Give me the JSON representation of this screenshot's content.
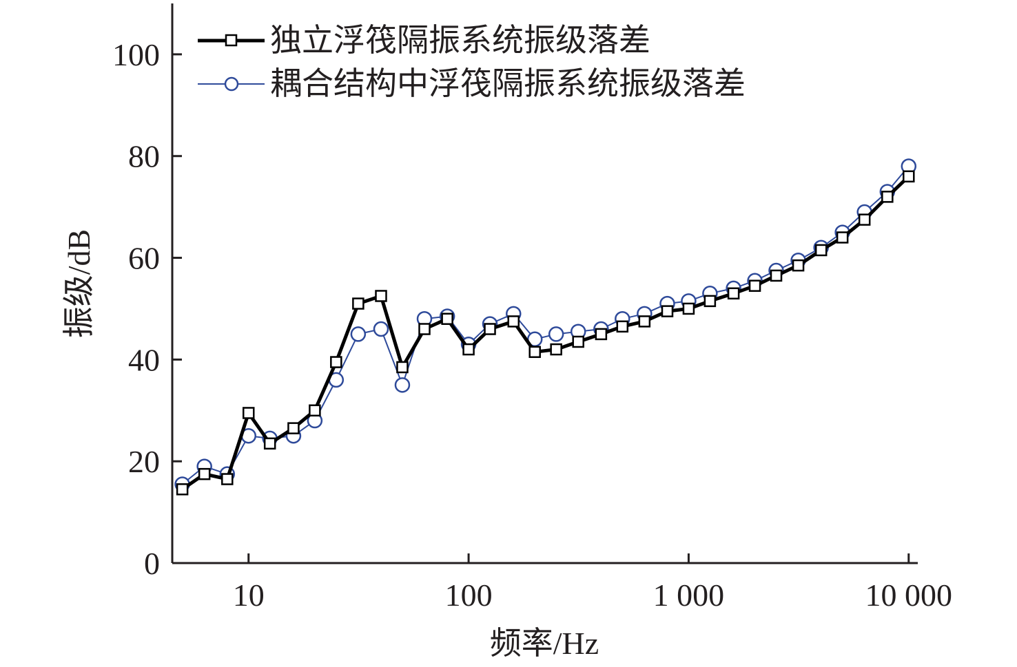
{
  "chart_data": {
    "type": "line",
    "xlabel": "频率/Hz",
    "ylabel": "振级/dB",
    "xscale": "log",
    "xlim": [
      4.5,
      11000
    ],
    "ylim": [
      0,
      110
    ],
    "x_ticks": [
      10,
      100,
      1000,
      10000
    ],
    "x_tick_labels": [
      "10",
      "100",
      "1 000",
      "10 000"
    ],
    "y_ticks": [
      0,
      20,
      40,
      60,
      80,
      100
    ],
    "y_tick_labels": [
      "0",
      "20",
      "40",
      "60",
      "80",
      "100"
    ],
    "legend_position": "top-left",
    "grid": false,
    "x": [
      5,
      6.3,
      8,
      10,
      12.5,
      16,
      20,
      25,
      31.5,
      40,
      50,
      63,
      80,
      100,
      125,
      160,
      200,
      250,
      315,
      400,
      500,
      630,
      800,
      1000,
      1250,
      1600,
      2000,
      2500,
      3150,
      4000,
      5000,
      6300,
      8000,
      10000
    ],
    "series": [
      {
        "name": "独立浮筏隔振系统振级落差",
        "color": "#000000",
        "marker": "square",
        "values": [
          14.5,
          17.5,
          16.5,
          29.5,
          23.5,
          26.5,
          30,
          39.5,
          51,
          52.5,
          38.5,
          46,
          48,
          42,
          46,
          47.5,
          41.5,
          42,
          43.5,
          45,
          46.5,
          47.5,
          49.5,
          50,
          51.5,
          53,
          54.5,
          56.5,
          58.5,
          61.5,
          64,
          67.5,
          72,
          76
        ]
      },
      {
        "name": "耦合结构中浮筏隔振系统振级落差",
        "color": "#2e4a9a",
        "marker": "circle",
        "values": [
          15.5,
          19,
          17.5,
          25,
          24.5,
          25,
          28,
          36,
          45,
          46,
          35,
          48,
          48.5,
          43,
          47,
          49,
          44,
          45,
          45.5,
          46,
          48,
          49,
          51,
          51.5,
          53,
          54,
          55.5,
          57.5,
          59.5,
          62,
          65,
          69,
          73,
          78
        ]
      }
    ]
  }
}
